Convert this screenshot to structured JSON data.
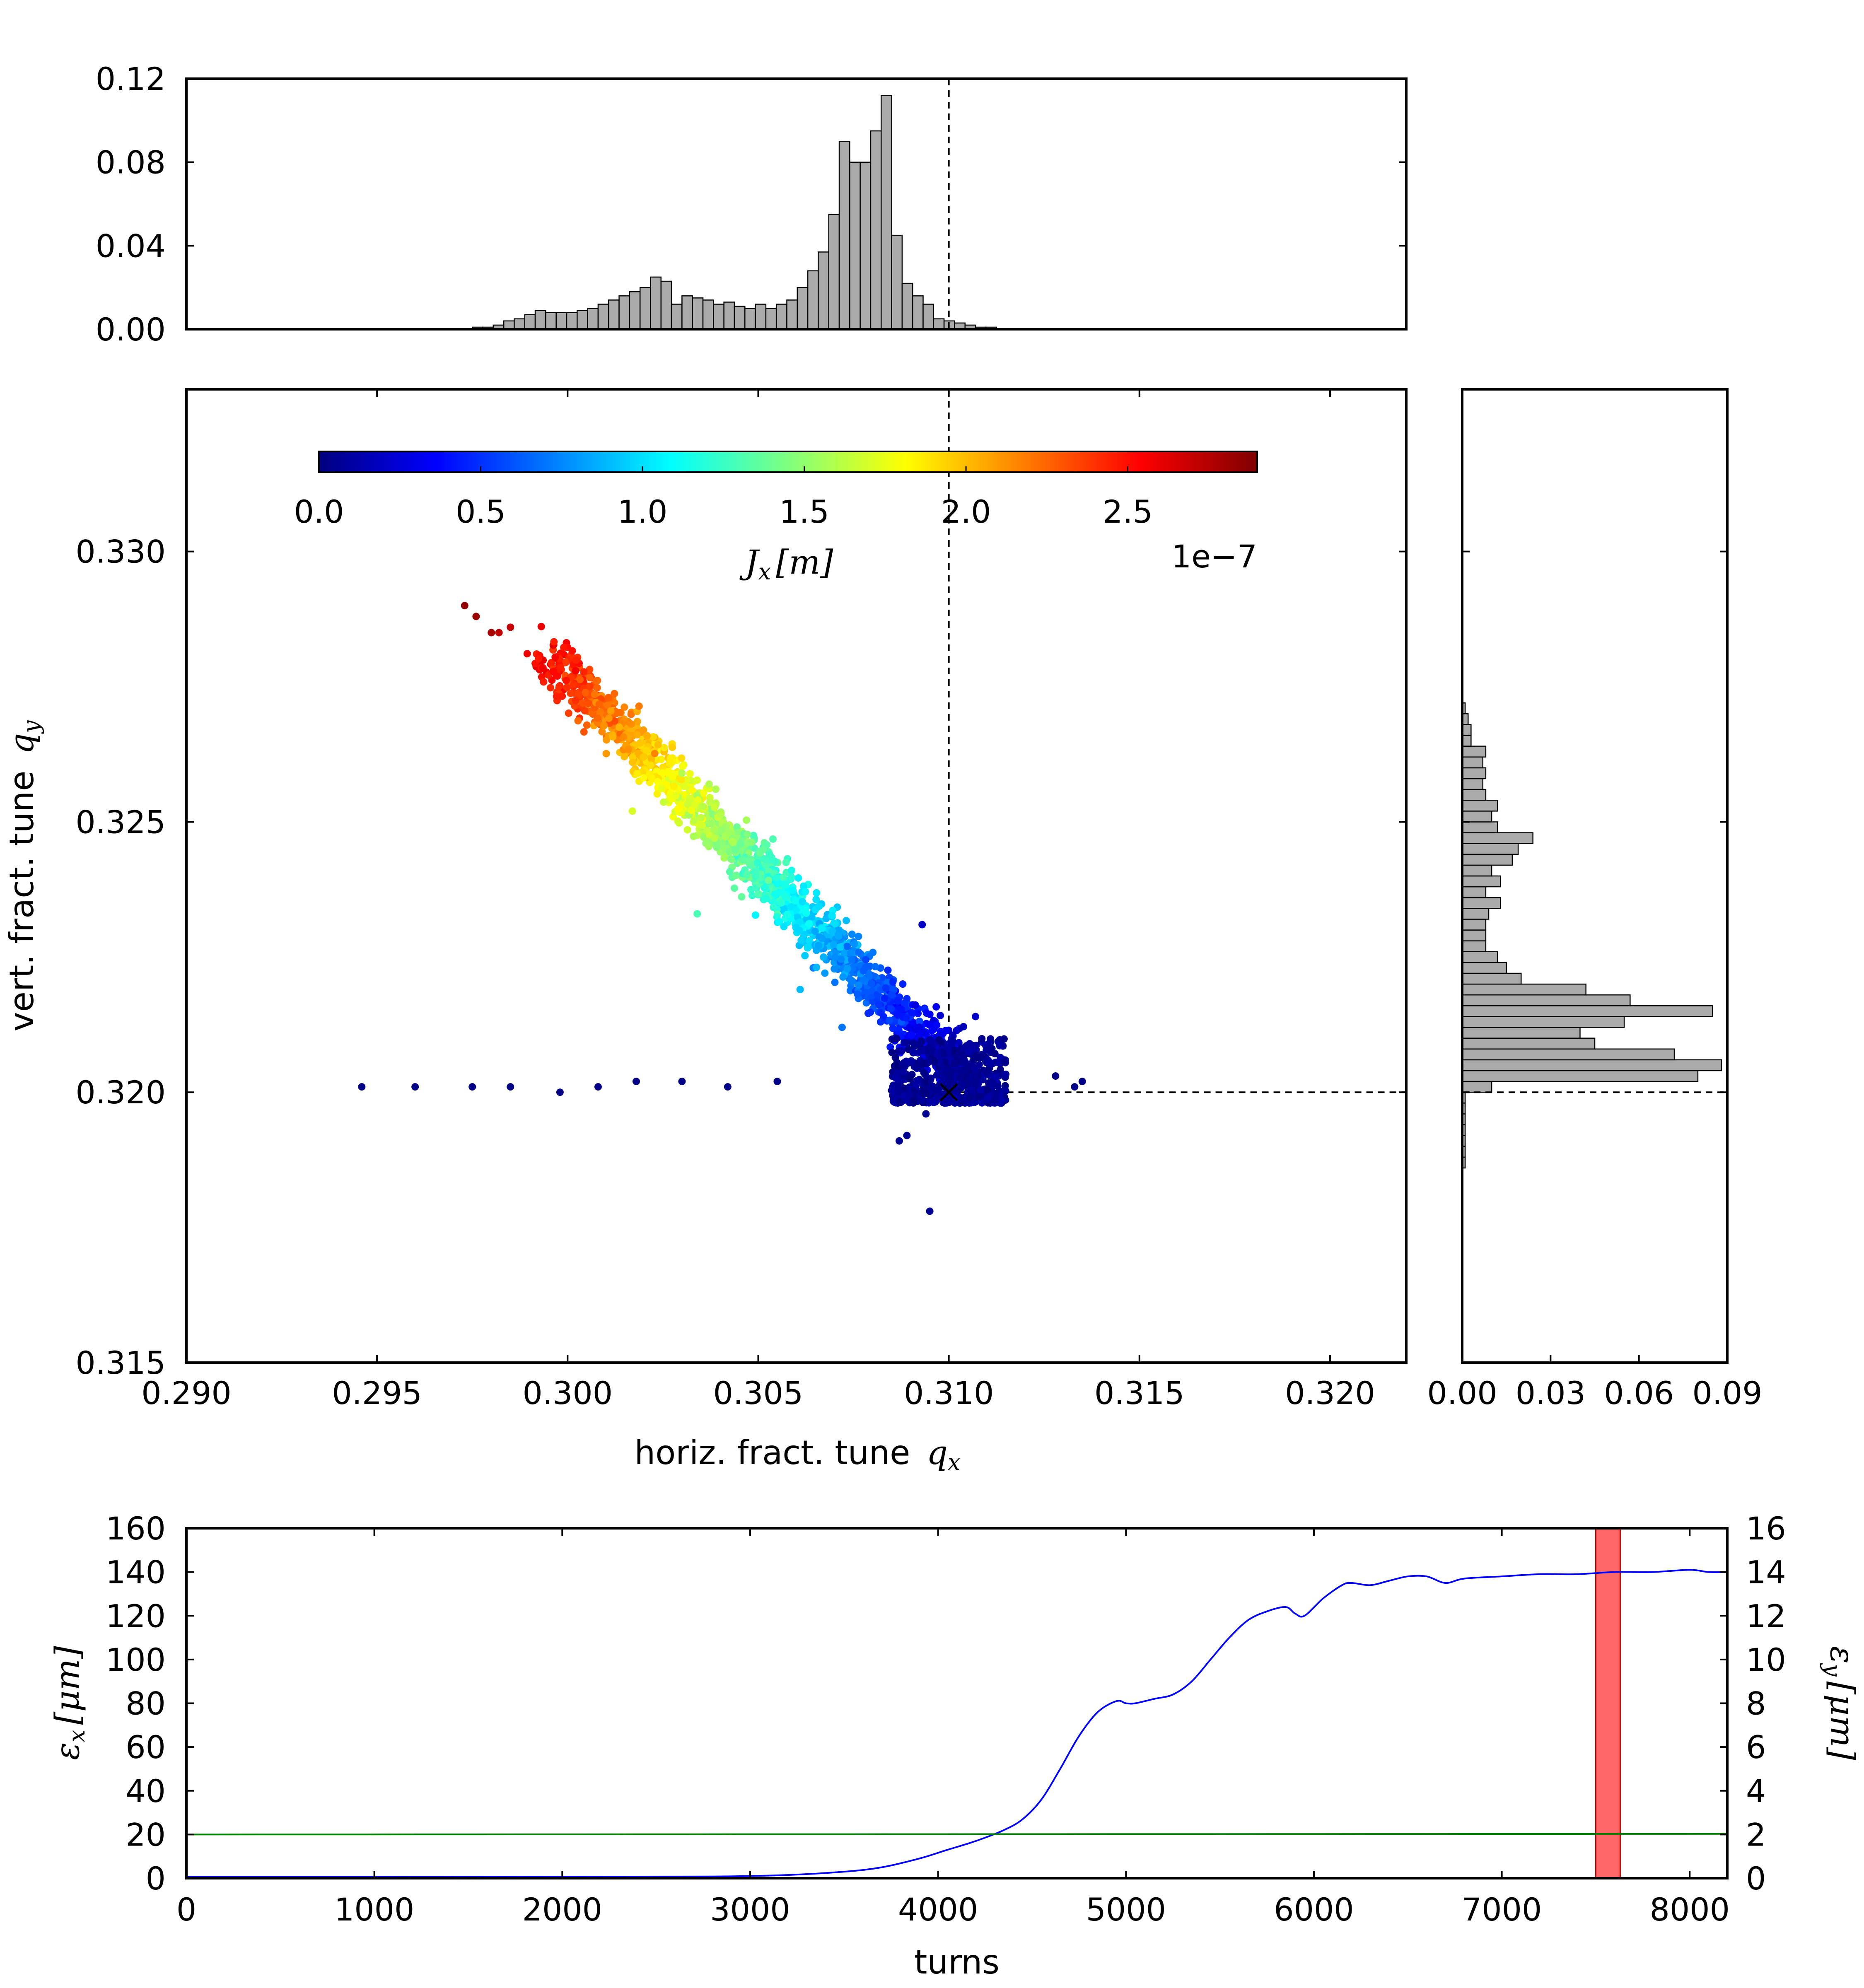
{
  "chart_data": [
    {
      "id": "top-histogram",
      "type": "bar",
      "title": "",
      "xlabel": "",
      "ylabel": "",
      "xlim": [
        0.29,
        0.322
      ],
      "ylim": [
        0.0,
        0.12
      ],
      "yticks": [
        "0.00",
        "0.04",
        "0.08",
        "0.12"
      ],
      "reference_line_x": 0.31,
      "bin_start": 0.2975,
      "bin_width": 0.000275,
      "values": [
        0.001,
        0.001,
        0.002,
        0.004,
        0.005,
        0.007,
        0.009,
        0.008,
        0.008,
        0.008,
        0.009,
        0.01,
        0.012,
        0.014,
        0.016,
        0.018,
        0.02,
        0.025,
        0.023,
        0.012,
        0.016,
        0.015,
        0.014,
        0.012,
        0.013,
        0.011,
        0.01,
        0.012,
        0.01,
        0.012,
        0.014,
        0.02,
        0.028,
        0.037,
        0.055,
        0.09,
        0.08,
        0.08,
        0.095,
        0.112,
        0.045,
        0.022,
        0.016,
        0.012,
        0.005,
        0.004,
        0.003,
        0.002,
        0.001,
        0.001
      ]
    },
    {
      "id": "tune-scatter",
      "type": "scatter",
      "title": "",
      "xlabel": "horiz. fract. tune",
      "xlabel_symbol": "q",
      "xlabel_sub": "x",
      "ylabel": "vert. fract. tune",
      "ylabel_symbol": "q",
      "ylabel_sub": "y",
      "xlim": [
        0.29,
        0.322
      ],
      "ylim": [
        0.315,
        0.333
      ],
      "xticks": [
        "0.290",
        "0.295",
        "0.300",
        "0.305",
        "0.310",
        "0.315",
        "0.320"
      ],
      "yticks": [
        "0.315",
        "0.320",
        "0.325",
        "0.330"
      ],
      "reference_point": [
        0.31,
        0.32
      ],
      "colorbar": {
        "label_symbol": "J",
        "label_sub": "x",
        "label_unit": "[m]",
        "range": [
          0.0,
          2.9
        ],
        "ticks": [
          "0.0",
          "0.5",
          "1.0",
          "1.5",
          "2.0",
          "2.5"
        ],
        "exponent_label": "1e−7",
        "colors": [
          "#00007f",
          "#0000ff",
          "#007fff",
          "#00ffff",
          "#7fff7f",
          "#ffff00",
          "#ff7f00",
          "#ff0000",
          "#7f0000"
        ]
      },
      "main_band": {
        "x_start": 0.2993,
        "x_end": 0.3105,
        "y_start": 0.3282,
        "y_end": 0.3202,
        "j_start": 2.6,
        "j_end": 0.05,
        "point_count": 1700
      },
      "core_cluster": {
        "x_range": [
          0.3085,
          0.3115
        ],
        "y_range": [
          0.3198,
          0.321
        ],
        "point_count": 500
      },
      "outlier_points": [
        {
          "x": 0.2973,
          "y": 0.329,
          "j": 2.85
        },
        {
          "x": 0.2976,
          "y": 0.3288,
          "j": 2.82
        },
        {
          "x": 0.298,
          "y": 0.3285,
          "j": 2.78
        },
        {
          "x": 0.2982,
          "y": 0.3285,
          "j": 2.72
        },
        {
          "x": 0.2985,
          "y": 0.3286,
          "j": 2.7
        },
        {
          "x": 0.303,
          "y": 0.3259,
          "j": 1.6
        },
        {
          "x": 0.3017,
          "y": 0.3252,
          "j": 1.7
        },
        {
          "x": 0.3034,
          "y": 0.3233,
          "j": 1.3
        },
        {
          "x": 0.3061,
          "y": 0.3219,
          "j": 0.9
        },
        {
          "x": 0.3072,
          "y": 0.3212,
          "j": 0.7
        },
        {
          "x": 0.3093,
          "y": 0.3231,
          "j": 0.2
        },
        {
          "x": 0.3107,
          "y": 0.3214,
          "j": 0.2
        },
        {
          "x": 0.2946,
          "y": 0.3201,
          "j": 0.02
        },
        {
          "x": 0.296,
          "y": 0.3201,
          "j": 0.02
        },
        {
          "x": 0.2975,
          "y": 0.3201,
          "j": 0.02
        },
        {
          "x": 0.2985,
          "y": 0.3201,
          "j": 0.02
        },
        {
          "x": 0.2998,
          "y": 0.32,
          "j": 0.02
        },
        {
          "x": 0.3008,
          "y": 0.3201,
          "j": 0.02
        },
        {
          "x": 0.3018,
          "y": 0.3202,
          "j": 0.02
        },
        {
          "x": 0.303,
          "y": 0.3202,
          "j": 0.02
        },
        {
          "x": 0.3042,
          "y": 0.3201,
          "j": 0.02
        },
        {
          "x": 0.3055,
          "y": 0.3202,
          "j": 0.02
        },
        {
          "x": 0.3128,
          "y": 0.3203,
          "j": 0.02
        },
        {
          "x": 0.3133,
          "y": 0.3201,
          "j": 0.02
        },
        {
          "x": 0.3135,
          "y": 0.3202,
          "j": 0.02
        },
        {
          "x": 0.3087,
          "y": 0.3191,
          "j": 0.05
        },
        {
          "x": 0.3089,
          "y": 0.3192,
          "j": 0.05
        },
        {
          "x": 0.3094,
          "y": 0.3196,
          "j": 0.05
        },
        {
          "x": 0.3095,
          "y": 0.3178,
          "j": 0.05
        }
      ]
    },
    {
      "id": "right-histogram",
      "type": "bar",
      "orientation": "horizontal",
      "title": "",
      "xlabel": "",
      "ylabel": "",
      "xlim": [
        0.0,
        0.09
      ],
      "ylim": [
        0.315,
        0.333
      ],
      "xticks": [
        "0.00",
        "0.03",
        "0.06",
        "0.09"
      ],
      "reference_line_y": 0.32,
      "bin_start": 0.3186,
      "bin_width": 0.0002,
      "values": [
        0.001,
        0.001,
        0.001,
        0.001,
        0.001,
        0.001,
        0.001,
        0.01,
        0.08,
        0.088,
        0.072,
        0.045,
        0.04,
        0.055,
        0.085,
        0.057,
        0.042,
        0.02,
        0.015,
        0.012,
        0.008,
        0.008,
        0.008,
        0.009,
        0.013,
        0.008,
        0.013,
        0.01,
        0.017,
        0.019,
        0.024,
        0.012,
        0.01,
        0.012,
        0.008,
        0.007,
        0.008,
        0.007,
        0.008,
        0.003,
        0.003,
        0.002,
        0.001
      ]
    },
    {
      "id": "emittance-timeline",
      "type": "line",
      "title": "",
      "xlabel": "turns",
      "ylabel_left_symbol": "ε",
      "ylabel_left_sub": "x",
      "ylabel_right_symbol": "ε",
      "ylabel_right_sub": "y",
      "ylabel_unit": "[μm]",
      "xlim": [
        0,
        8200
      ],
      "ylim_left": [
        0,
        160
      ],
      "ylim_right": [
        0,
        16
      ],
      "xticks": [
        "0",
        "1000",
        "2000",
        "3000",
        "4000",
        "5000",
        "6000",
        "7000",
        "8000"
      ],
      "yticks_left": [
        "0",
        "20",
        "40",
        "60",
        "80",
        "100",
        "120",
        "140",
        "160"
      ],
      "yticks_right": [
        "0",
        "2",
        "4",
        "6",
        "8",
        "10",
        "12",
        "14",
        "16"
      ],
      "highlight_window": [
        7500,
        7630
      ],
      "series": [
        {
          "axis": "left",
          "color": "#0000ff",
          "x": [
            0,
            1000,
            2000,
            2800,
            3200,
            3500,
            3700,
            3900,
            4050,
            4200,
            4350,
            4450,
            4550,
            4650,
            4750,
            4850,
            4950,
            5000,
            5050,
            5150,
            5250,
            5350,
            5450,
            5550,
            5650,
            5750,
            5850,
            5900,
            5950,
            6050,
            6150,
            6200,
            6300,
            6400,
            6500,
            6600,
            6700,
            6800,
            7000,
            7200,
            7400,
            7600,
            7800,
            8000,
            8100,
            8200
          ],
          "y": [
            0.6,
            0.6,
            0.7,
            0.8,
            1.5,
            3,
            5,
            9,
            13,
            17,
            22,
            27,
            36,
            50,
            65,
            76,
            81,
            80,
            80,
            82,
            84,
            90,
            100,
            110,
            118,
            122,
            124,
            121,
            120,
            128,
            134,
            135,
            134,
            136,
            138,
            138,
            135,
            137,
            138,
            139,
            139,
            140,
            140,
            141,
            140,
            140
          ]
        },
        {
          "axis": "right",
          "color": "#007f00",
          "x": [
            0,
            8200
          ],
          "y": [
            2.0,
            2.03
          ]
        }
      ]
    }
  ]
}
